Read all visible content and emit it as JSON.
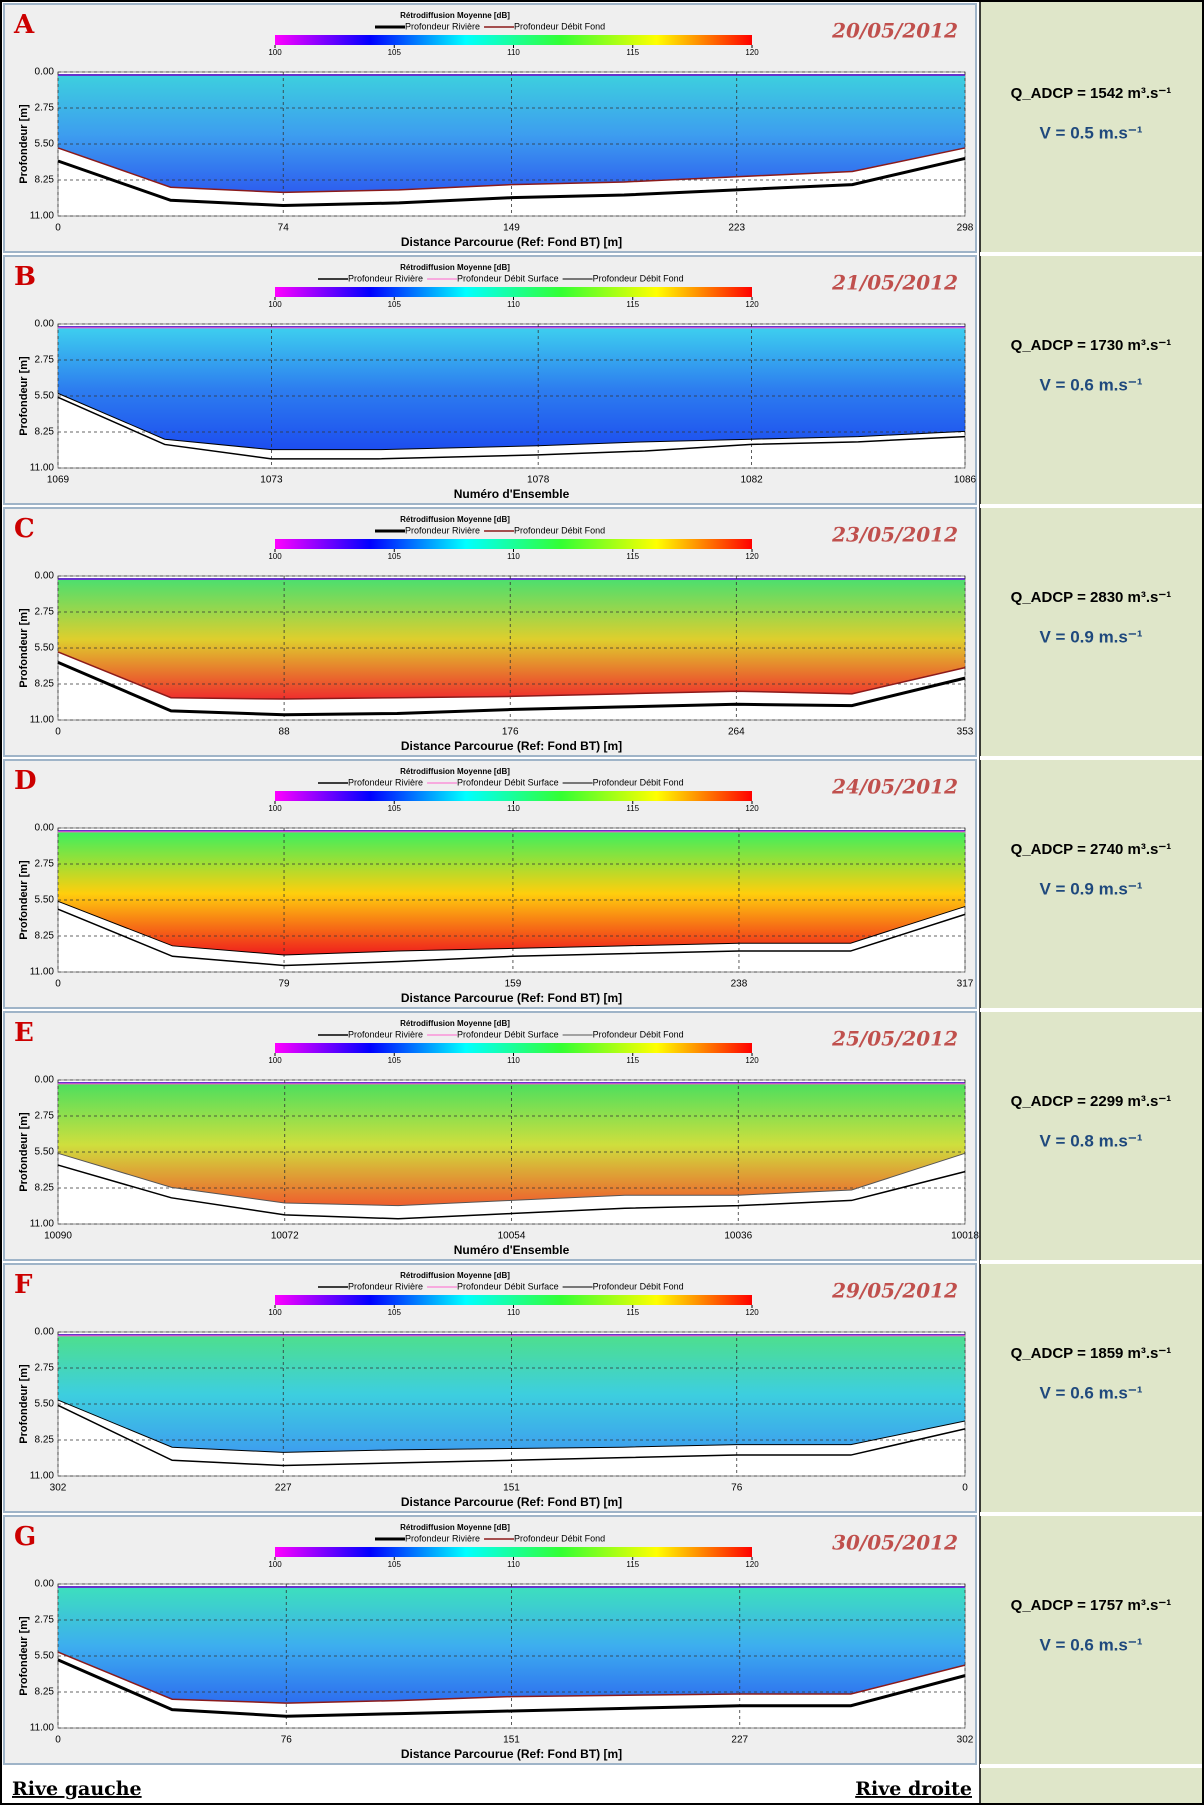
{
  "chart_data": [
    {
      "type": "line",
      "panel_label": "A",
      "date": "20/05/2012",
      "legend_title": "Rétrodiffusion Moyenne [dB]",
      "xlabel": "Distance Parcourue (Ref: Fond BT) [m]",
      "ylabel": "Profondeur [m]",
      "discharge": "Q_ADCP = 1542 m³.s⁻¹",
      "velocity": "V = 0.5 m.s⁻¹",
      "colorbar": {
        "lim": [
          100,
          120
        ],
        "ticks": [
          100,
          105,
          110,
          115,
          120
        ],
        "colors": [
          "#ff00ff",
          "#0000ff",
          "#00ffff",
          "#33ff33",
          "#ffff00",
          "#ff0000"
        ]
      },
      "heatmap_colors": [
        "#33ccdd",
        "#3399ee",
        "#2255ee"
      ],
      "x": [
        0,
        37,
        74,
        112,
        149,
        186,
        223,
        261,
        298
      ],
      "xlim": [
        0,
        298
      ],
      "xticks": [
        0,
        74,
        149,
        223,
        298
      ],
      "ylim": [
        0,
        11
      ],
      "y_inverted": true,
      "grid": true,
      "yticks": [
        {
          "value": 0,
          "label": "0.00"
        },
        {
          "value": 2.75,
          "label": "2.75"
        },
        {
          "value": 5.5,
          "label": "5.50"
        },
        {
          "value": 8.25,
          "label": "8.25"
        },
        {
          "value": 11,
          "label": "11.00"
        }
      ],
      "series": [
        {
          "name": "Profondeur Rivière",
          "color": "#000000",
          "width": 3,
          "values": [
            6.8,
            9.8,
            10.2,
            10.0,
            9.6,
            9.4,
            9.0,
            8.6,
            6.6
          ]
        },
        {
          "name": "Profondeur Débit Fond",
          "color": "#8b1a1a",
          "width": 1.5,
          "values": [
            5.8,
            8.8,
            9.2,
            9.0,
            8.6,
            8.4,
            8.0,
            7.6,
            5.8
          ]
        }
      ]
    },
    {
      "type": "line",
      "panel_label": "B",
      "date": "21/05/2012",
      "legend_title": "Rétrodiffusion Moyenne [dB]",
      "xlabel": "Numéro d'Ensemble",
      "ylabel": "Profondeur [m]",
      "discharge": "Q_ADCP = 1730 m³.s⁻¹",
      "velocity": "V = 0.6 m.s⁻¹",
      "colorbar": {
        "lim": [
          100,
          120
        ],
        "ticks": [
          100,
          105,
          110,
          115,
          120
        ],
        "colors": [
          "#ff00ff",
          "#0000ff",
          "#00ffff",
          "#33ff33",
          "#ffff00",
          "#ff0000"
        ]
      },
      "heatmap_colors": [
        "#33ccee",
        "#2277ee",
        "#1144ee"
      ],
      "x": [
        1069,
        1071,
        1073,
        1075,
        1078,
        1080,
        1082,
        1084,
        1086
      ],
      "xlim": [
        1069,
        1086
      ],
      "xticks": [
        1069,
        1073,
        1078,
        1082,
        1086
      ],
      "ylim": [
        0,
        11
      ],
      "y_inverted": true,
      "grid": true,
      "yticks": [
        {
          "value": 0,
          "label": "0.00"
        },
        {
          "value": 2.75,
          "label": "2.75"
        },
        {
          "value": 5.5,
          "label": "5.50"
        },
        {
          "value": 8.25,
          "label": "8.25"
        },
        {
          "value": 11,
          "label": "11.00"
        }
      ],
      "series": [
        {
          "name": "Profondeur Rivière",
          "color": "#000000",
          "width": 1.5,
          "values": [
            5.6,
            9.2,
            10.3,
            10.3,
            10.0,
            9.7,
            9.2,
            9.0,
            8.6
          ]
        },
        {
          "name": "Profondeur Débit Surface",
          "color": "#ff66cc",
          "width": 1,
          "values": [
            0.3,
            0.3,
            0.3,
            0.3,
            0.3,
            0.3,
            0.3,
            0.3,
            0.3
          ]
        },
        {
          "name": "Profondeur Débit Fond",
          "color": "#000000",
          "width": 1,
          "values": [
            5.3,
            8.8,
            9.6,
            9.6,
            9.3,
            9.0,
            8.8,
            8.6,
            8.2
          ]
        }
      ]
    },
    {
      "type": "line",
      "panel_label": "C",
      "date": "23/05/2012",
      "legend_title": "Rétrodiffusion Moyenne [dB]",
      "xlabel": "Distance Parcourue (Ref: Fond BT) [m]",
      "ylabel": "Profondeur [m]",
      "discharge": "Q_ADCP = 2830 m³.s⁻¹",
      "velocity": "V = 0.9 m.s⁻¹",
      "colorbar": {
        "lim": [
          100,
          120
        ],
        "ticks": [
          100,
          105,
          110,
          115,
          120
        ],
        "colors": [
          "#ff00ff",
          "#0000ff",
          "#00ffff",
          "#33ff33",
          "#ffff00",
          "#ff0000"
        ]
      },
      "heatmap_colors": [
        "#44dd66",
        "#ddcc22",
        "#ee2222"
      ],
      "x": [
        0,
        44,
        88,
        132,
        176,
        220,
        264,
        309,
        353
      ],
      "xlim": [
        0,
        353
      ],
      "xticks": [
        0,
        88,
        176,
        264,
        353
      ],
      "ylim": [
        0,
        11
      ],
      "y_inverted": true,
      "grid": true,
      "yticks": [
        {
          "value": 0,
          "label": "0.00"
        },
        {
          "value": 2.75,
          "label": "2.75"
        },
        {
          "value": 5.5,
          "label": "5.50"
        },
        {
          "value": 8.25,
          "label": "8.25"
        },
        {
          "value": 11,
          "label": "11.00"
        }
      ],
      "series": [
        {
          "name": "Profondeur Rivière",
          "color": "#000000",
          "width": 3,
          "values": [
            6.6,
            10.3,
            10.6,
            10.5,
            10.2,
            10.0,
            9.8,
            9.9,
            7.8
          ]
        },
        {
          "name": "Profondeur Débit Fond",
          "color": "#8b1a1a",
          "width": 1.5,
          "values": [
            5.8,
            9.3,
            9.4,
            9.3,
            9.2,
            9.0,
            8.8,
            9.0,
            7.0
          ]
        }
      ]
    },
    {
      "type": "line",
      "panel_label": "D",
      "date": "24/05/2012",
      "legend_title": "Rétrodiffusion Moyenne [dB]",
      "xlabel": "Distance Parcourue (Ref: Fond BT) [m]",
      "ylabel": "Profondeur [m]",
      "discharge": "Q_ADCP = 2740 m³.s⁻¹",
      "velocity": "V = 0.9 m.s⁻¹",
      "colorbar": {
        "lim": [
          100,
          120
        ],
        "ticks": [
          100,
          105,
          110,
          115,
          120
        ],
        "colors": [
          "#ff00ff",
          "#0000ff",
          "#00ffff",
          "#33ff33",
          "#ffff00",
          "#ff0000"
        ]
      },
      "heatmap_colors": [
        "#33ee55",
        "#ffcc00",
        "#ee1111"
      ],
      "x": [
        0,
        40,
        79,
        119,
        159,
        198,
        238,
        277,
        317
      ],
      "xlim": [
        0,
        317
      ],
      "xticks": [
        0,
        79,
        159,
        238,
        317
      ],
      "ylim": [
        0,
        11
      ],
      "y_inverted": true,
      "grid": true,
      "yticks": [
        {
          "value": 0,
          "label": "0.00"
        },
        {
          "value": 2.75,
          "label": "2.75"
        },
        {
          "value": 5.5,
          "label": "5.50"
        },
        {
          "value": 8.25,
          "label": "8.25"
        },
        {
          "value": 11,
          "label": "11.00"
        }
      ],
      "series": [
        {
          "name": "Profondeur Rivière",
          "color": "#000000",
          "width": 1.5,
          "values": [
            6.2,
            9.8,
            10.5,
            10.2,
            9.8,
            9.6,
            9.4,
            9.4,
            6.6
          ]
        },
        {
          "name": "Profondeur Débit Surface",
          "color": "#ff66cc",
          "width": 1,
          "values": [
            0.3,
            0.3,
            0.3,
            0.3,
            0.3,
            0.3,
            0.3,
            0.3,
            0.3
          ]
        },
        {
          "name": "Profondeur Débit Fond",
          "color": "#000000",
          "width": 1,
          "values": [
            5.6,
            9.0,
            9.7,
            9.4,
            9.2,
            9.0,
            8.8,
            8.8,
            6.0
          ]
        }
      ]
    },
    {
      "type": "line",
      "panel_label": "E",
      "date": "25/05/2012",
      "legend_title": "Rétrodiffusion Moyenne [dB]",
      "xlabel": "Numéro d'Ensemble",
      "ylabel": "Profondeur [m]",
      "discharge": "Q_ADCP = 2299 m³.s⁻¹",
      "velocity": "V = 0.8 m.s⁻¹",
      "colorbar": {
        "lim": [
          100,
          120
        ],
        "ticks": [
          100,
          105,
          110,
          115,
          120
        ],
        "colors": [
          "#ff00ff",
          "#0000ff",
          "#00ffff",
          "#33ff33",
          "#ffff00",
          "#ff0000"
        ]
      },
      "heatmap_colors": [
        "#44dd55",
        "#ccdd33",
        "#ee5522"
      ],
      "x": [
        10090,
        10081,
        10072,
        10063,
        10054,
        10045,
        10036,
        10027,
        10018
      ],
      "xlim": [
        10090,
        10018
      ],
      "xticks": [
        10090,
        10072,
        10054,
        10036,
        10018
      ],
      "ylim": [
        0,
        11
      ],
      "y_inverted": true,
      "grid": true,
      "yticks": [
        {
          "value": 0,
          "label": "0.00"
        },
        {
          "value": 2.75,
          "label": "2.75"
        },
        {
          "value": 5.5,
          "label": "5.50"
        },
        {
          "value": 8.25,
          "label": "8.25"
        },
        {
          "value": 11,
          "label": "11.00"
        }
      ],
      "series": [
        {
          "name": "Profondeur Rivière",
          "color": "#000000",
          "width": 1.5,
          "values": [
            6.5,
            9.0,
            10.3,
            10.6,
            10.2,
            9.8,
            9.6,
            9.2,
            7.0
          ]
        },
        {
          "name": "Profondeur Débit Surface",
          "color": "#ff66cc",
          "width": 1,
          "values": [
            0.3,
            0.3,
            0.3,
            0.3,
            0.3,
            0.3,
            0.3,
            0.3,
            0.3
          ]
        },
        {
          "name": "Profondeur Débit Fond",
          "color": "#555555",
          "width": 1,
          "values": [
            5.6,
            8.2,
            9.4,
            9.6,
            9.2,
            8.8,
            8.8,
            8.4,
            5.6
          ]
        }
      ]
    },
    {
      "type": "line",
      "panel_label": "F",
      "date": "29/05/2012",
      "legend_title": "Rétrodiffusion Moyenne [dB]",
      "xlabel": "Distance Parcourue (Ref: Fond BT) [m]",
      "ylabel": "Profondeur [m]",
      "discharge": "Q_ADCP = 1859 m³.s⁻¹",
      "velocity": "V = 0.6 m.s⁻¹",
      "colorbar": {
        "lim": [
          100,
          120
        ],
        "ticks": [
          100,
          105,
          110,
          115,
          120
        ],
        "colors": [
          "#ff00ff",
          "#0000ff",
          "#00ffff",
          "#33ff33",
          "#ffff00",
          "#ff0000"
        ]
      },
      "heatmap_colors": [
        "#44dd88",
        "#33ccdd",
        "#3399ee"
      ],
      "x": [
        302,
        264,
        227,
        189,
        151,
        114,
        76,
        38,
        0
      ],
      "xlim": [
        302,
        0
      ],
      "xticks": [
        302,
        227,
        151,
        76,
        0
      ],
      "ylim": [
        0,
        11
      ],
      "y_inverted": true,
      "grid": true,
      "yticks": [
        {
          "value": 0,
          "label": "0.00"
        },
        {
          "value": 2.75,
          "label": "2.75"
        },
        {
          "value": 5.5,
          "label": "5.50"
        },
        {
          "value": 8.25,
          "label": "8.25"
        },
        {
          "value": 11,
          "label": "11.00"
        }
      ],
      "series": [
        {
          "name": "Profondeur Rivière",
          "color": "#000000",
          "width": 1.5,
          "values": [
            5.6,
            9.8,
            10.2,
            10.0,
            9.8,
            9.6,
            9.4,
            9.4,
            7.4
          ]
        },
        {
          "name": "Profondeur Débit Surface",
          "color": "#ff66cc",
          "width": 1,
          "values": [
            0.3,
            0.3,
            0.3,
            0.3,
            0.3,
            0.3,
            0.3,
            0.3,
            0.3
          ]
        },
        {
          "name": "Profondeur Débit Fond",
          "color": "#000000",
          "width": 1,
          "values": [
            5.2,
            8.8,
            9.2,
            9.0,
            8.9,
            8.8,
            8.6,
            8.6,
            6.8
          ]
        }
      ]
    },
    {
      "type": "line",
      "panel_label": "G",
      "date": "30/05/2012",
      "legend_title": "Rétrodiffusion Moyenne [dB]",
      "xlabel": "Distance Parcourue (Ref: Fond BT) [m]",
      "ylabel": "Profondeur [m]",
      "discharge": "Q_ADCP = 1757 m³.s⁻¹",
      "velocity": "V = 0.6 m.s⁻¹",
      "colorbar": {
        "lim": [
          100,
          120
        ],
        "ticks": [
          100,
          105,
          110,
          115,
          120
        ],
        "colors": [
          "#ff00ff",
          "#0000ff",
          "#00ffff",
          "#33ff33",
          "#ffff00",
          "#ff0000"
        ]
      },
      "heatmap_colors": [
        "#33ddbb",
        "#33aaee",
        "#2266ee"
      ],
      "x": [
        0,
        38,
        76,
        114,
        151,
        189,
        227,
        264,
        302
      ],
      "xlim": [
        0,
        302
      ],
      "xticks": [
        0,
        76,
        151,
        227,
        302
      ],
      "ylim": [
        0,
        11
      ],
      "y_inverted": true,
      "grid": true,
      "yticks": [
        {
          "value": 0,
          "label": "0.00"
        },
        {
          "value": 2.75,
          "label": "2.75"
        },
        {
          "value": 5.5,
          "label": "5.50"
        },
        {
          "value": 8.25,
          "label": "8.25"
        },
        {
          "value": 11,
          "label": "11.00"
        }
      ],
      "series": [
        {
          "name": "Profondeur Rivière",
          "color": "#000000",
          "width": 3,
          "values": [
            5.8,
            9.6,
            10.1,
            9.9,
            9.7,
            9.5,
            9.3,
            9.3,
            7.0
          ]
        },
        {
          "name": "Profondeur Débit Fond",
          "color": "#8b1a1a",
          "width": 1.5,
          "values": [
            5.2,
            8.8,
            9.1,
            8.9,
            8.6,
            8.5,
            8.4,
            8.4,
            6.2
          ]
        }
      ]
    }
  ],
  "footer": {
    "left": "Rive gauche",
    "right": "Rive droite"
  }
}
